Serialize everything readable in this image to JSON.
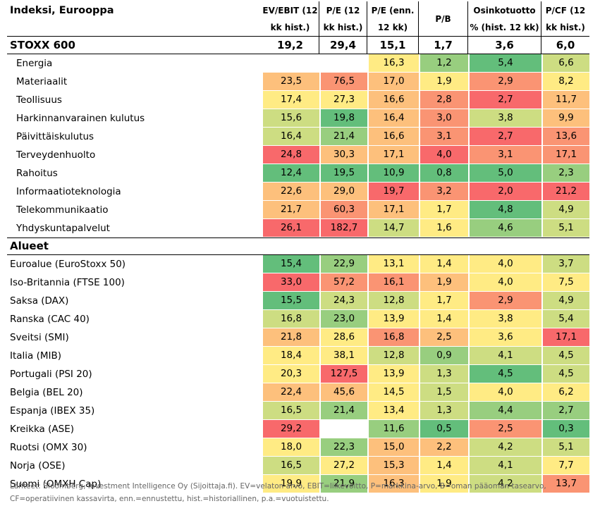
{
  "chart_data": {
    "type": "table",
    "title": "Indeksi, Eurooppa",
    "columns": [
      "EV/EBIT (12 kk hist.)",
      "P/E (12 kk hist.)",
      "P/E (enn. 12 kk)",
      "P/B",
      "Osinkotuotto % (hist. 12 kk)",
      "P/CF (12 kk hist.)"
    ],
    "total": {
      "label": "STOXX 600",
      "values": [
        "19,2",
        "29,4",
        "15,1",
        "1,7",
        "3,6",
        "6,0"
      ]
    },
    "sectors": [
      {
        "label": "Energia",
        "values": [
          "",
          "",
          "16,3",
          "1,2",
          "5,4",
          "6,6"
        ]
      },
      {
        "label": "Materiaalit",
        "values": [
          "23,5",
          "76,5",
          "17,0",
          "1,9",
          "2,9",
          "8,2"
        ]
      },
      {
        "label": "Teollisuus",
        "values": [
          "17,4",
          "27,3",
          "16,6",
          "2,8",
          "2,7",
          "11,7"
        ]
      },
      {
        "label": "Harkinnanvarainen kulutus",
        "values": [
          "15,6",
          "19,8",
          "16,4",
          "3,0",
          "3,8",
          "9,9"
        ]
      },
      {
        "label": "Päivittäiskulutus",
        "values": [
          "16,4",
          "21,4",
          "16,6",
          "3,1",
          "2,7",
          "13,6"
        ]
      },
      {
        "label": "Terveydenhuolto",
        "values": [
          "24,8",
          "30,3",
          "17,1",
          "4,0",
          "3,1",
          "17,1"
        ]
      },
      {
        "label": "Rahoitus",
        "values": [
          "12,4",
          "19,5",
          "10,9",
          "0,8",
          "5,0",
          "2,3"
        ]
      },
      {
        "label": "Informaatioteknologia",
        "values": [
          "22,6",
          "29,0",
          "19,7",
          "3,2",
          "2,0",
          "21,2"
        ]
      },
      {
        "label": "Telekommunikaatio",
        "values": [
          "21,7",
          "60,3",
          "17,1",
          "1,7",
          "4,8",
          "4,9"
        ]
      },
      {
        "label": "Yhdyskuntapalvelut",
        "values": [
          "26,1",
          "182,7",
          "14,7",
          "1,6",
          "4,6",
          "5,1"
        ]
      }
    ],
    "section_label": "Alueet",
    "regions": [
      {
        "label": "Euroalue (EuroStoxx 50)",
        "values": [
          "15,4",
          "22,9",
          "13,1",
          "1,4",
          "4,0",
          "3,7"
        ]
      },
      {
        "label": "Iso-Britannia (FTSE 100)",
        "values": [
          "33,0",
          "57,2",
          "16,1",
          "1,9",
          "4,0",
          "7,5"
        ]
      },
      {
        "label": "Saksa (DAX)",
        "values": [
          "15,5",
          "24,3",
          "12,8",
          "1,7",
          "2,9",
          "4,9"
        ]
      },
      {
        "label": "Ranska (CAC 40)",
        "values": [
          "16,8",
          "23,0",
          "13,9",
          "1,4",
          "3,8",
          "5,4"
        ]
      },
      {
        "label": "Sveitsi (SMI)",
        "values": [
          "21,8",
          "28,6",
          "16,8",
          "2,5",
          "3,6",
          "17,1"
        ]
      },
      {
        "label": "Italia (MIB)",
        "values": [
          "18,4",
          "38,1",
          "12,8",
          "0,9",
          "4,1",
          "4,5"
        ]
      },
      {
        "label": "Portugali (PSI 20)",
        "values": [
          "20,3",
          "127,5",
          "13,9",
          "1,3",
          "4,5",
          "4,5"
        ]
      },
      {
        "label": "Belgia (BEL 20)",
        "values": [
          "22,4",
          "45,6",
          "14,5",
          "1,5",
          "4,0",
          "6,2"
        ]
      },
      {
        "label": "Espanja (IBEX 35)",
        "values": [
          "16,5",
          "21,4",
          "13,4",
          "1,3",
          "4,4",
          "2,7"
        ]
      },
      {
        "label": "Kreikka (ASE)",
        "values": [
          "29,2",
          "",
          "11,6",
          "0,5",
          "2,5",
          "0,3"
        ]
      },
      {
        "label": "Ruotsi (OMX 30)",
        "values": [
          "18,0",
          "22,3",
          "15,0",
          "2,2",
          "4,2",
          "5,1"
        ]
      },
      {
        "label": "Norja (OSE)",
        "values": [
          "16,5",
          "27,2",
          "15,3",
          "1,4",
          "4,1",
          "7,7"
        ]
      },
      {
        "label": "Suomi (OMXH Cap)",
        "values": [
          "19,9",
          "21,9",
          "16,3",
          "1,9",
          "4,2",
          "13,7"
        ]
      }
    ],
    "colors": {
      "scale": [
        "#63be7b",
        "#98ce7f",
        "#cddd82",
        "#ffeb84",
        "#fdc07c",
        "#fa9473",
        "#f8696b"
      ],
      "empty": "#ffffff"
    },
    "cell_color_index": {
      "sectors": [
        [
          -1,
          -1,
          3,
          1,
          0,
          2
        ],
        [
          4,
          5,
          4,
          3,
          5,
          3
        ],
        [
          3,
          3,
          4,
          5,
          6,
          4
        ],
        [
          2,
          0,
          4,
          5,
          2,
          4
        ],
        [
          2,
          1,
          4,
          5,
          6,
          5
        ],
        [
          6,
          4,
          4,
          6,
          5,
          5
        ],
        [
          0,
          0,
          0,
          0,
          0,
          1
        ],
        [
          4,
          4,
          6,
          5,
          6,
          6
        ],
        [
          4,
          5,
          4,
          3,
          0,
          2
        ],
        [
          6,
          6,
          2,
          3,
          1,
          2
        ]
      ],
      "regions": [
        [
          0,
          1,
          3,
          3,
          3,
          2
        ],
        [
          6,
          5,
          5,
          4,
          3,
          3
        ],
        [
          0,
          2,
          2,
          3,
          5,
          2
        ],
        [
          2,
          1,
          3,
          3,
          3,
          2
        ],
        [
          4,
          3,
          5,
          4,
          3,
          6
        ],
        [
          3,
          3,
          2,
          1,
          2,
          2
        ],
        [
          3,
          6,
          3,
          2,
          0,
          2
        ],
        [
          4,
          4,
          3,
          2,
          3,
          3
        ],
        [
          2,
          1,
          3,
          2,
          1,
          1
        ],
        [
          6,
          -1,
          1,
          0,
          5,
          0
        ],
        [
          3,
          1,
          4,
          4,
          2,
          2
        ],
        [
          2,
          3,
          4,
          3,
          2,
          3
        ],
        [
          3,
          1,
          4,
          3,
          2,
          5
        ]
      ]
    }
  },
  "footnote": "Lähteet: Bloomberg, Investment Intelligence Oy (Sijoittaja.fi). EV=velaton arvo, EBIT=liikevoitto, P=markkina-arvo, B=oman pääoman tasearvo, CF=operatiivinen kassavirta, enn.=ennustettu, hist.=historiallinen, p.a.=vuotuistettu."
}
